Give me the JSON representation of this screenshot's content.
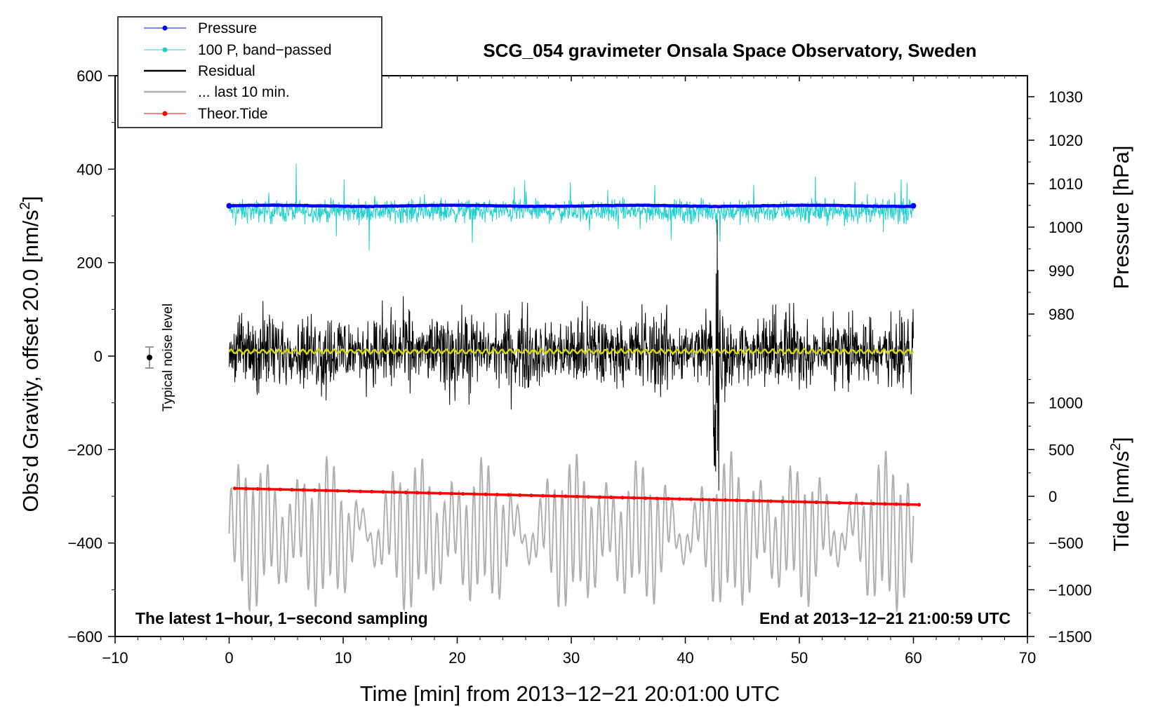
{
  "chart_data": {
    "type": "line",
    "title": "SCG_054 gravimeter Onsala Space Observatory, Sweden",
    "xlabel": "Time [min] from 2013−12−21 20:01:00 UTC",
    "ylabel_left": "Obs’d Gravity, offset 20.0 [nm/s²]",
    "ylabel_left_main": "Obs’d Gravity, offset 20.0 [nm/s",
    "ylabel_left_sup": "2",
    "ylabel_left_end": "]",
    "ylabel_right_pressure": "Pressure [hPa]",
    "ylabel_right_tide_main": "Tide [nm/s",
    "ylabel_right_tide_sup": "2",
    "ylabel_right_tide_end": "]",
    "xlim": [
      -10,
      70
    ],
    "ylim": [
      -600,
      600
    ],
    "x_ticks": [
      "−10",
      "0",
      "10",
      "20",
      "30",
      "40",
      "50",
      "60",
      "70"
    ],
    "x_tick_values": [
      -10,
      0,
      10,
      20,
      30,
      40,
      50,
      60,
      70
    ],
    "y_ticks": [
      "−600",
      "−400",
      "−200",
      "0",
      "200",
      "400",
      "600"
    ],
    "y_tick_values": [
      -600,
      -400,
      -200,
      0,
      200,
      400,
      600
    ],
    "pressure_axis": {
      "ticks": [
        "980",
        "990",
        "1000",
        "1010",
        "1020",
        "1030"
      ],
      "tick_values": [
        980,
        990,
        1000,
        1010,
        1020,
        1030
      ],
      "plot_units_at_980": 90,
      "plot_units_per_hpa": 9.3
    },
    "tide_axis": {
      "ticks": [
        "−1500",
        "−1000",
        "−500",
        "0",
        "500",
        "1000"
      ],
      "tick_values": [
        -1500,
        -1000,
        -500,
        0,
        500,
        1000
      ],
      "plot_units_at_0": -300,
      "plot_units_per_unit": 0.2
    },
    "series": [
      {
        "name": "Pressure",
        "color": "#0000ff",
        "level_hpa": 1004.9,
        "x_range": [
          0,
          60
        ]
      },
      {
        "name": "100 P, band−passed",
        "color": "#20d0d0",
        "center": 310,
        "amplitude": 35
      },
      {
        "name": "Residual",
        "color": "#000000",
        "center": 10,
        "amplitude": 100
      },
      {
        "name": "... last 10 min.",
        "color": "#b0b0b0",
        "center": -380,
        "amplitude": 110
      },
      {
        "name": "Theor.Tide",
        "color": "#ff0000",
        "start": [
          0.5,
          -283
        ],
        "end": [
          60.5,
          -318
        ]
      }
    ],
    "annotations": {
      "noise_label": "Typical noise level",
      "bottom_left": "The latest 1−hour, 1−second sampling",
      "bottom_right": "End at 2013−12−21 21:00:59 UTC"
    },
    "legend_position": "top-left"
  }
}
